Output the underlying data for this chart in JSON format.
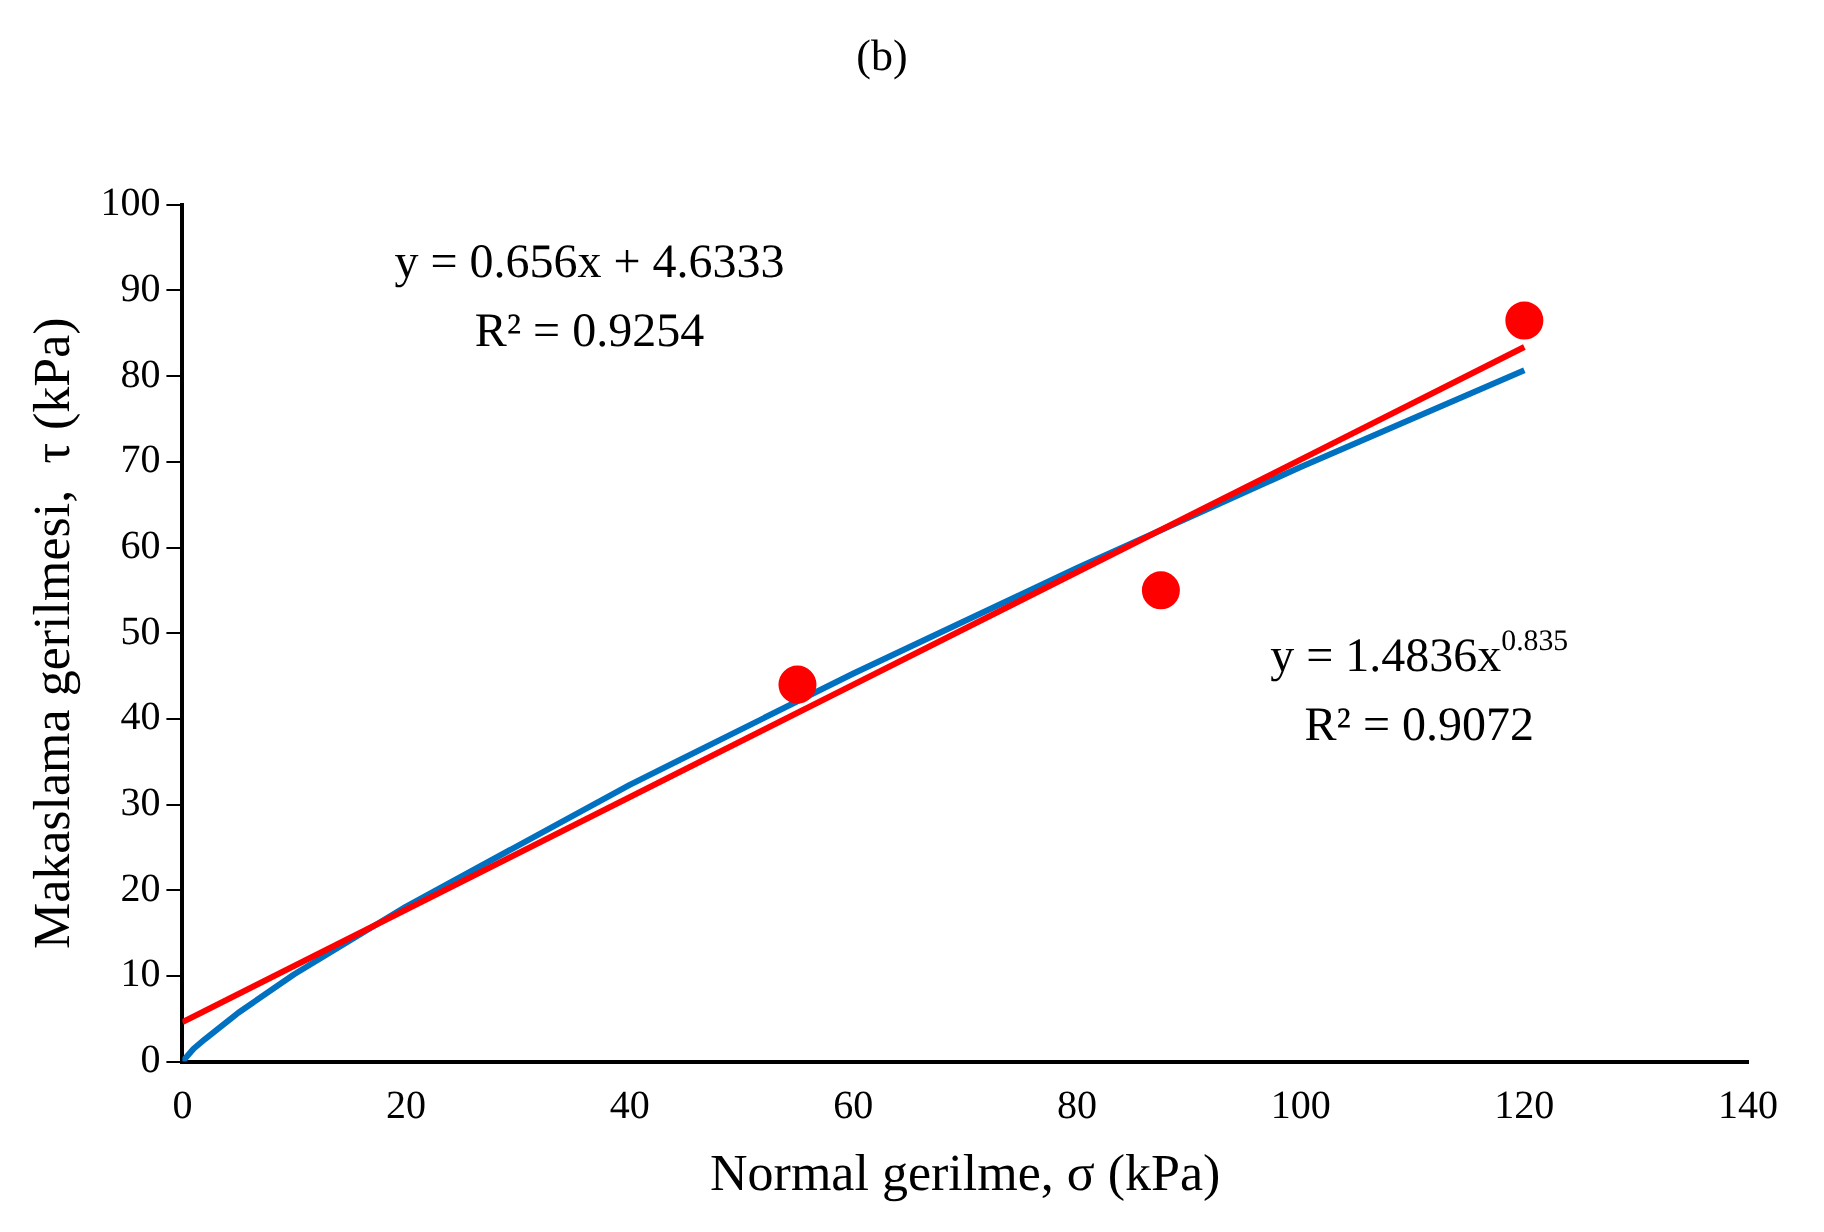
{
  "chart_data": {
    "type": "scatter",
    "title": "(b)",
    "xlabel": "Normal gerilme, σ (kPa)",
    "ylabel": "Makaslama gerilmesi,  τ (kPa)",
    "xlim": [
      0,
      140
    ],
    "xticks": [
      0,
      20,
      40,
      60,
      80,
      100,
      120,
      140
    ],
    "ylim": [
      0,
      100
    ],
    "yticks": [
      0,
      10,
      20,
      30,
      40,
      50,
      60,
      70,
      80,
      90,
      100
    ],
    "grid": false,
    "legend": false,
    "annotations": [
      "y = 0.656x + 4.6333",
      "R² = 0.9254",
      "y = 1.4836x$^{0.835}$",
      "R² = 0.9072"
    ],
    "series": [
      {
        "type": "scatter",
        "color": "#ff0000",
        "marker": "circle",
        "x": [
          55,
          87.5,
          120
        ],
        "values": [
          44,
          55,
          86.5
        ]
      },
      {
        "type": "line",
        "color": "#ff0000",
        "marker": "none",
        "x": [
          0,
          120
        ],
        "values": [
          4.6,
          83.4
        ]
      },
      {
        "type": "line",
        "color": "#0070c0",
        "marker": "none",
        "x": [
          0,
          1,
          2,
          5,
          10,
          20,
          40,
          60,
          80,
          100,
          120
        ],
        "values": [
          0,
          1.5,
          2.6,
          5.7,
          10.2,
          18.1,
          32.3,
          45.3,
          57.6,
          69.4,
          80.7
        ]
      }
    ]
  }
}
